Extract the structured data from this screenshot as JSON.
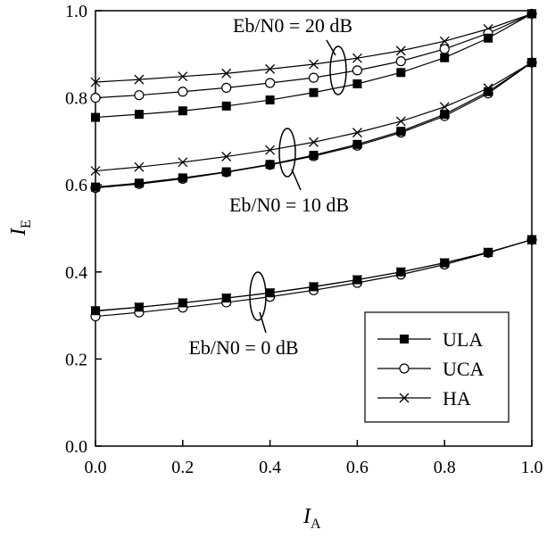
{
  "chart_data": {
    "type": "line",
    "title": "",
    "xlabel": "I",
    "xlabel_sub": "A",
    "ylabel": "I",
    "ylabel_sub": "E",
    "xlim": [
      0.0,
      1.0
    ],
    "ylim": [
      0.0,
      1.0
    ],
    "x_ticks": [
      "0.0",
      "0.2",
      "0.4",
      "0.6",
      "0.8",
      "1.0"
    ],
    "y_ticks": [
      "0.0",
      "0.2",
      "0.4",
      "0.6",
      "0.8",
      "1.0"
    ],
    "grid": false,
    "legend_placement": "lower-right",
    "x": [
      0.0,
      0.1,
      0.2,
      0.3,
      0.4,
      0.5,
      0.6,
      0.7,
      0.8,
      0.9,
      1.0
    ],
    "legend": [
      {
        "name": "ULA",
        "marker": "filled-square"
      },
      {
        "name": "UCA",
        "marker": "open-circle"
      },
      {
        "name": "HA",
        "marker": "cross"
      }
    ],
    "groups": [
      {
        "label": "Eb/N0 = 20 dB",
        "series": [
          {
            "name": "ULA",
            "values": [
              0.755,
              0.762,
              0.77,
              0.781,
              0.795,
              0.812,
              0.832,
              0.858,
              0.892,
              0.937,
              0.993
            ]
          },
          {
            "name": "UCA",
            "values": [
              0.8,
              0.806,
              0.814,
              0.823,
              0.834,
              0.846,
              0.863,
              0.884,
              0.912,
              0.948,
              0.993
            ]
          },
          {
            "name": "HA",
            "values": [
              0.836,
              0.842,
              0.849,
              0.856,
              0.866,
              0.877,
              0.891,
              0.908,
              0.93,
              0.958,
              0.993
            ]
          }
        ]
      },
      {
        "label": "Eb/N0 = 10 dB",
        "series": [
          {
            "name": "ULA",
            "values": [
              0.595,
              0.604,
              0.616,
              0.63,
              0.647,
              0.668,
              0.693,
              0.723,
              0.762,
              0.814,
              0.881
            ]
          },
          {
            "name": "UCA",
            "values": [
              0.593,
              0.602,
              0.614,
              0.629,
              0.646,
              0.666,
              0.69,
              0.72,
              0.758,
              0.81,
              0.881
            ]
          },
          {
            "name": "HA",
            "values": [
              0.632,
              0.641,
              0.652,
              0.665,
              0.68,
              0.698,
              0.72,
              0.746,
              0.779,
              0.822,
              0.881
            ]
          }
        ]
      },
      {
        "label": "Eb/N0 = 0 dB",
        "series": [
          {
            "name": "ULA",
            "values": [
              0.311,
              0.319,
              0.329,
              0.34,
              0.352,
              0.366,
              0.382,
              0.4,
              0.421,
              0.445,
              0.474
            ]
          },
          {
            "name": "UCA",
            "values": [
              0.298,
              0.307,
              0.318,
              0.33,
              0.343,
              0.358,
              0.375,
              0.394,
              0.417,
              0.444,
              0.474
            ]
          },
          {
            "name": "HA",
            "values": [
              0.31,
              0.319,
              0.329,
              0.34,
              0.352,
              0.366,
              0.382,
              0.4,
              0.421,
              0.445,
              0.474
            ]
          }
        ]
      }
    ]
  }
}
